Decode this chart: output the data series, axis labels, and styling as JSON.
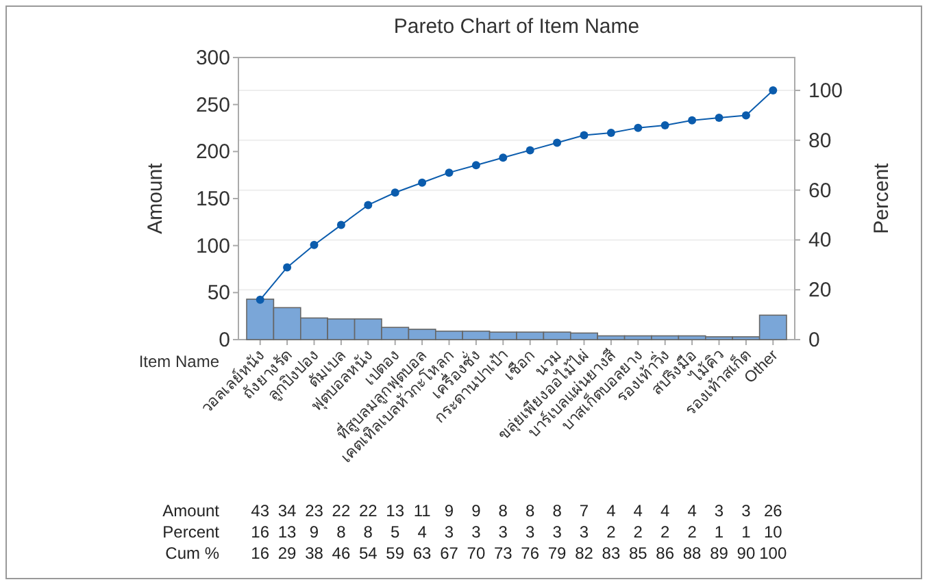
{
  "chart_data": {
    "type": "bar",
    "title": "Pareto Chart of Item Name",
    "xlabel": "Item Name",
    "ylabel": "Amount",
    "y2label": "Percent",
    "categories": [
      "วอลเลย์หนัง",
      "ถังยางรัด",
      "ลูกปิงปอง",
      "ดัมเบล",
      "ฟุตบอลหนัง",
      "เปตอง",
      "ที่สูบลมลูกฟุตบอล",
      "เคตเทิลเบลหัวกะโหลก",
      "เครื่องชั่ง",
      "กระดานปาเป้า",
      "เชือก",
      "นวม",
      "ขลุ่ยเพียงออไม้ไผ่",
      "บาร์เบลแผ่นยางสี",
      "บาสเก็ตบอลยาง",
      "รองเท้าวิ่ง",
      "สปริงมือ",
      "ไม้คิว",
      "รองเท้าสเก็ต",
      "Other"
    ],
    "series": [
      {
        "color": "#7aa6d8",
        "values": [
          43,
          34,
          23,
          22,
          22,
          13,
          11,
          9,
          9,
          8,
          8,
          8,
          7,
          4,
          4,
          4,
          4,
          3,
          3,
          26
        ]
      },
      {
        "type": "line",
        "axis": "y2",
        "color": "#0b5cad",
        "marker": "circle",
        "values": [
          16,
          29,
          38,
          46,
          54,
          59,
          63,
          67,
          70,
          73,
          76,
          79,
          82,
          83,
          85,
          86,
          88,
          89,
          90,
          100
        ]
      }
    ],
    "annotations": [
      "Amount",
      "Percent",
      "Cum %",
      "16",
      "13",
      "9",
      "8",
      "8",
      "5",
      "4",
      "3",
      "3",
      "3",
      "3",
      "3",
      "3",
      "2",
      "2",
      "2",
      "2",
      "1",
      "1",
      "10"
    ],
    "ylim": [
      0,
      300
    ],
    "yticks": [
      0,
      50,
      100,
      150,
      200,
      250,
      300
    ],
    "y2lim": [
      0,
      113.2
    ],
    "y2ticks": [
      0,
      20,
      40,
      60,
      80,
      100
    ],
    "grid": "y",
    "data_labels": true
  }
}
